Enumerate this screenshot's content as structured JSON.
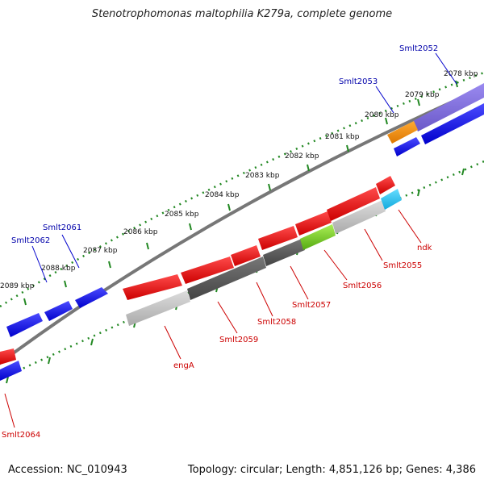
{
  "title": "Stenotrophomonas maltophilia K279a, complete genome",
  "footer": {
    "accession": "Accession: NC_010943",
    "topology": "Topology: circular; Length: 4,851,126 bp; Genes: 4,386"
  },
  "ticks": [
    "2078 kbp",
    "2079 kbp",
    "2080 kbp",
    "2081 kbp",
    "2082 kbp",
    "2083 kbp",
    "2084 kbp",
    "2085 kbp",
    "2086 kbp",
    "2087 kbp",
    "2088 kbp",
    "2089 kbp"
  ],
  "labels_top": [
    "Smlt2052",
    "Smlt2053",
    "Smlt2061",
    "Smlt2062"
  ],
  "labels_bottom": [
    "ndk",
    "Smlt2055",
    "Smlt2056",
    "Smlt2057",
    "Smlt2058",
    "Smlt2059",
    "engA",
    "Smlt2064"
  ],
  "colors": {
    "forward_blue": "#0000ee",
    "cds_red": "#ee0000",
    "purple": "#7b68d8",
    "orange": "#ee8800",
    "cyan": "#22bbee",
    "green": "#66cc22",
    "gray_dark": "#555555",
    "gray_light": "#bbbbbb",
    "tick_green": "#228822",
    "label_blue": "#0000aa",
    "label_red": "#cc0000"
  }
}
